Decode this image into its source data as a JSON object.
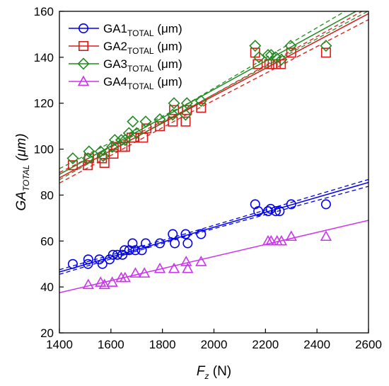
{
  "chart_data": {
    "type": "scatter",
    "title": "",
    "xlabel": {
      "main": "F",
      "sub": "z",
      "unit": " (N)"
    },
    "ylabel": {
      "main": "GA",
      "sub": "TOTAL",
      "unit": " (μm)"
    },
    "xlim": [
      1400,
      2600
    ],
    "ylim": [
      20,
      160
    ],
    "xticks": [
      1400,
      1600,
      1800,
      2000,
      2200,
      2400,
      2600
    ],
    "yticks": [
      20,
      40,
      60,
      80,
      100,
      120,
      140,
      160
    ],
    "grid": false,
    "legend_position": "top-left",
    "series": [
      {
        "name": {
          "main": "GA1",
          "sub": "TOTAL",
          "unit": " (μm)"
        },
        "marker": "circle",
        "color": "#0000ee",
        "points": [
          [
            1452,
            50
          ],
          [
            1511,
            50
          ],
          [
            1512,
            52
          ],
          [
            1555,
            52
          ],
          [
            1567,
            50
          ],
          [
            1595,
            52
          ],
          [
            1608,
            54
          ],
          [
            1625,
            54
          ],
          [
            1645,
            54
          ],
          [
            1653,
            56
          ],
          [
            1671,
            56
          ],
          [
            1684,
            59
          ],
          [
            1695,
            56
          ],
          [
            1720,
            56
          ],
          [
            1735,
            59
          ],
          [
            1790,
            59
          ],
          [
            1840,
            63
          ],
          [
            1848,
            59
          ],
          [
            1890,
            63
          ],
          [
            1898,
            59
          ],
          [
            1950,
            63
          ],
          [
            2160,
            76
          ],
          [
            2172,
            73
          ],
          [
            2210,
            73
          ],
          [
            2220,
            74
          ],
          [
            2240,
            73
          ],
          [
            2255,
            73
          ],
          [
            2300,
            76
          ],
          [
            2435,
            76
          ]
        ],
        "fit": {
          "x": [
            1400,
            2600
          ],
          "y": [
            46.5,
            85.5
          ]
        },
        "ci_upper": [
          [
            1400,
            47.5
          ],
          [
            1900,
            63.5
          ],
          [
            2600,
            86.8
          ]
        ],
        "ci_lower": [
          [
            1400,
            45.5
          ],
          [
            1900,
            62.3
          ],
          [
            2600,
            83.8
          ]
        ]
      },
      {
        "name": {
          "main": "GA2",
          "sub": "TOTAL",
          "unit": " (μm)"
        },
        "marker": "square",
        "color": "#dd1a1a",
        "points": [
          [
            1452,
            93
          ],
          [
            1510,
            93
          ],
          [
            1515,
            96
          ],
          [
            1565,
            96
          ],
          [
            1575,
            94
          ],
          [
            1610,
            98
          ],
          [
            1620,
            101
          ],
          [
            1645,
            101
          ],
          [
            1655,
            101
          ],
          [
            1680,
            105
          ],
          [
            1690,
            105
          ],
          [
            1725,
            105
          ],
          [
            1738,
            109
          ],
          [
            1790,
            110
          ],
          [
            1840,
            112
          ],
          [
            1845,
            117
          ],
          [
            1890,
            112
          ],
          [
            1895,
            117
          ],
          [
            1950,
            118
          ],
          [
            2160,
            142
          ],
          [
            2170,
            137
          ],
          [
            2215,
            137
          ],
          [
            2228,
            137
          ],
          [
            2240,
            137
          ],
          [
            2260,
            137
          ],
          [
            2300,
            142
          ],
          [
            2435,
            142
          ]
        ],
        "fit": {
          "x": [
            1400,
            2600
          ],
          "y": [
            87.5,
            159
          ]
        },
        "ci_upper": [
          [
            1400,
            89.8
          ],
          [
            1900,
            117.6
          ],
          [
            2600,
            161.6
          ]
        ],
        "ci_lower": [
          [
            1400,
            85.2
          ],
          [
            1900,
            115.4
          ],
          [
            2600,
            156.4
          ]
        ]
      },
      {
        "name": {
          "main": "GA3",
          "sub": "TOTAL",
          "unit": " (μm)"
        },
        "marker": "diamond",
        "color": "#228b22",
        "points": [
          [
            1452,
            96
          ],
          [
            1511,
            96
          ],
          [
            1515,
            99
          ],
          [
            1560,
            99
          ],
          [
            1570,
            97
          ],
          [
            1605,
            101
          ],
          [
            1615,
            104
          ],
          [
            1640,
            104
          ],
          [
            1655,
            104
          ],
          [
            1670,
            107
          ],
          [
            1685,
            112
          ],
          [
            1700,
            107
          ],
          [
            1735,
            112
          ],
          [
            1790,
            113
          ],
          [
            1840,
            115
          ],
          [
            1845,
            120
          ],
          [
            1890,
            115
          ],
          [
            1895,
            120
          ],
          [
            1950,
            121
          ],
          [
            2160,
            145
          ],
          [
            2175,
            140
          ],
          [
            2210,
            141
          ],
          [
            2222,
            141
          ],
          [
            2240,
            140
          ],
          [
            2262,
            139
          ],
          [
            2298,
            145
          ],
          [
            2435,
            145
          ]
        ],
        "fit": {
          "x": [
            1400,
            2600
          ],
          "y": [
            89,
            163
          ]
        },
        "ci_upper": [
          [
            1400,
            91.5
          ],
          [
            1900,
            120.0
          ],
          [
            2600,
            166
          ]
        ],
        "ci_lower": [
          [
            1400,
            86.7
          ],
          [
            1900,
            117.8
          ],
          [
            2600,
            160.2
          ]
        ]
      },
      {
        "name": {
          "main": "GA4",
          "sub": "TOTAL",
          "unit": " (μm)"
        },
        "marker": "triangle",
        "color": "#cc33ee",
        "points": [
          [
            1512,
            41
          ],
          [
            1560,
            42
          ],
          [
            1575,
            41
          ],
          [
            1605,
            42
          ],
          [
            1640,
            44
          ],
          [
            1655,
            44
          ],
          [
            1695,
            46
          ],
          [
            1730,
            46
          ],
          [
            1790,
            48
          ],
          [
            1845,
            48
          ],
          [
            1892,
            51
          ],
          [
            1898,
            48
          ],
          [
            1950,
            51
          ],
          [
            2210,
            60
          ],
          [
            2222,
            60
          ],
          [
            2245,
            60
          ],
          [
            2262,
            60
          ],
          [
            2300,
            62
          ],
          [
            2435,
            62
          ]
        ],
        "fit": {
          "x": [
            1400,
            2600
          ],
          "y": [
            37.5,
            69
          ]
        },
        "ci_upper": [],
        "ci_lower": []
      }
    ]
  }
}
